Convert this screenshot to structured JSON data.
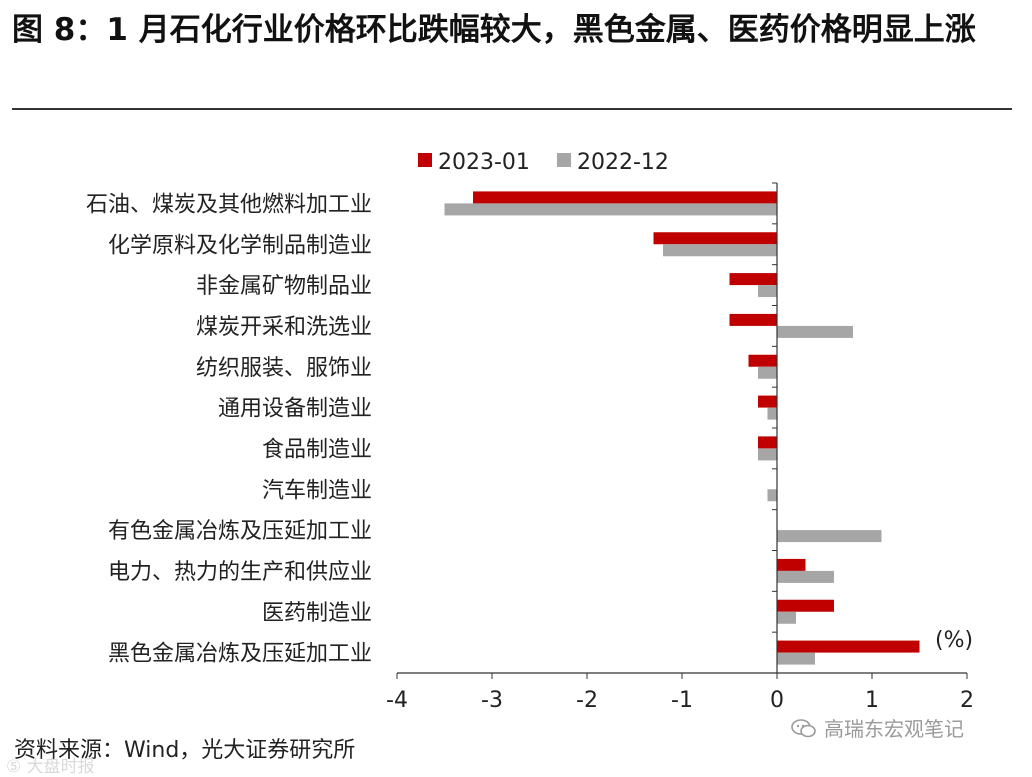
{
  "title": "图 8：1 月石化行业价格环比跌幅较大，黑色金属、医药价格明显上涨",
  "source": "资料来源：Wind，光大证券研究所",
  "watermark": "高瑞东宏观笔记",
  "watermark_bottom": "⑤ 大盘时报",
  "colors": {
    "series1": "#c00000",
    "series2": "#a6a6a6",
    "axis": "#333333"
  },
  "chart_data": {
    "type": "bar",
    "orientation": "horizontal",
    "title": "",
    "xlabel": "",
    "ylabel": "",
    "unit_label": "(%)",
    "xlim": [
      -4,
      2
    ],
    "xticks": [
      -4,
      -3,
      -2,
      -1,
      0,
      1,
      2
    ],
    "legend_position": "top",
    "categories": [
      "石油、煤炭及其他燃料加工业",
      "化学原料及化学制品制造业",
      "非金属矿物制品业",
      "煤炭开采和洗选业",
      "纺织服装、服饰业",
      "通用设备制造业",
      "食品制造业",
      "汽车制造业",
      "有色金属冶炼及压延加工业",
      "电力、热力的生产和供应业",
      "医药制造业",
      "黑色金属冶炼及压延加工业"
    ],
    "series": [
      {
        "name": "2023-01",
        "values": [
          -3.2,
          -1.3,
          -0.5,
          -0.5,
          -0.3,
          -0.2,
          -0.2,
          0.0,
          0.0,
          0.3,
          0.6,
          1.5
        ]
      },
      {
        "name": "2022-12",
        "values": [
          -3.5,
          -1.2,
          -0.2,
          0.8,
          -0.2,
          -0.1,
          -0.2,
          -0.1,
          1.1,
          0.6,
          0.2,
          0.4
        ]
      }
    ]
  }
}
